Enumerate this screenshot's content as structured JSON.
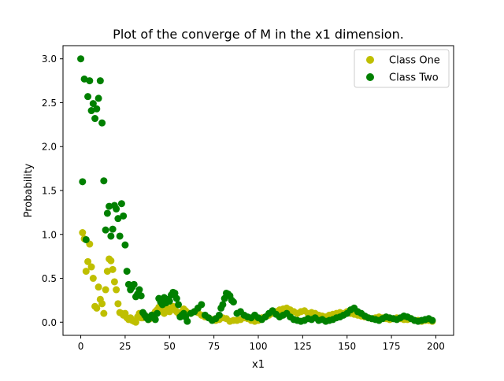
{
  "chart_data": {
    "type": "scatter",
    "title": "Plot of the converge of M in the x1 dimension.",
    "xlabel": "x1",
    "ylabel": "Probability",
    "xlim": [
      -10,
      210
    ],
    "ylim": [
      -0.15,
      3.15
    ],
    "xticks": [
      0,
      25,
      50,
      75,
      100,
      125,
      150,
      175,
      200
    ],
    "xtick_labels": [
      "0",
      "25",
      "50",
      "75",
      "100",
      "125",
      "150",
      "175",
      "200"
    ],
    "yticks": [
      0.0,
      0.5,
      1.0,
      1.5,
      2.0,
      2.5,
      3.0
    ],
    "ytick_labels": [
      "0.0",
      "0.5",
      "1.0",
      "1.5",
      "2.0",
      "2.5",
      "3.0"
    ],
    "grid": false,
    "legend_position": "top-right",
    "series": [
      {
        "name": "Class One",
        "color": "#bfbf00",
        "x": [
          1,
          2,
          3,
          4,
          5,
          6,
          7,
          8,
          9,
          10,
          11,
          12,
          13,
          14,
          15,
          16,
          17,
          18,
          19,
          20,
          21,
          22,
          23,
          24,
          25,
          26,
          27,
          28,
          29,
          30,
          31,
          32,
          33,
          34,
          35,
          36,
          37,
          38,
          39,
          40,
          41,
          42,
          43,
          44,
          45,
          46,
          47,
          48,
          49,
          50,
          51,
          52,
          53,
          54,
          55,
          56,
          57,
          58,
          59,
          60,
          62,
          64,
          66,
          68,
          70,
          72,
          74,
          76,
          78,
          80,
          82,
          84,
          86,
          88,
          90,
          92,
          94,
          96,
          98,
          100,
          102,
          104,
          106,
          108,
          110,
          112,
          114,
          116,
          118,
          120,
          122,
          124,
          126,
          128,
          130,
          132,
          134,
          136,
          138,
          140,
          142,
          144,
          146,
          148,
          150,
          152,
          154,
          156,
          158,
          160,
          162,
          164,
          166,
          168,
          170,
          172,
          174,
          176,
          178,
          180,
          182,
          184,
          186,
          188,
          190,
          192,
          194,
          196,
          198
        ],
        "y": [
          1.02,
          0.95,
          0.58,
          0.69,
          0.89,
          0.63,
          0.5,
          0.18,
          0.16,
          0.4,
          0.26,
          0.21,
          0.1,
          0.37,
          0.58,
          0.72,
          0.7,
          0.6,
          0.46,
          0.37,
          0.21,
          0.11,
          0.1,
          0.08,
          0.1,
          0.05,
          0.03,
          0.05,
          0.02,
          0.01,
          0.0,
          0.06,
          0.1,
          0.05,
          0.05,
          0.08,
          0.06,
          0.03,
          0.04,
          0.07,
          0.09,
          0.12,
          0.14,
          0.17,
          0.13,
          0.12,
          0.1,
          0.14,
          0.16,
          0.12,
          0.15,
          0.18,
          0.14,
          0.12,
          0.1,
          0.08,
          0.12,
          0.15,
          0.13,
          0.11,
          0.1,
          0.12,
          0.11,
          0.08,
          0.06,
          0.05,
          0.03,
          0.02,
          0.03,
          0.05,
          0.04,
          0.01,
          0.02,
          0.02,
          0.03,
          0.05,
          0.04,
          0.02,
          0.01,
          0.02,
          0.05,
          0.06,
          0.08,
          0.1,
          0.12,
          0.14,
          0.15,
          0.16,
          0.14,
          0.12,
          0.1,
          0.12,
          0.13,
          0.1,
          0.11,
          0.1,
          0.08,
          0.07,
          0.06,
          0.08,
          0.09,
          0.1,
          0.11,
          0.1,
          0.12,
          0.1,
          0.09,
          0.08,
          0.07,
          0.06,
          0.05,
          0.04,
          0.05,
          0.06,
          0.05,
          0.04,
          0.03,
          0.04,
          0.05,
          0.04,
          0.03,
          0.03,
          0.04,
          0.02,
          0.02,
          0.01,
          0.02,
          0.02,
          0.01
        ]
      },
      {
        "name": "Class Two",
        "color": "#008000",
        "x": [
          0,
          1,
          2,
          3,
          4,
          5,
          6,
          7,
          8,
          9,
          10,
          11,
          12,
          13,
          14,
          15,
          16,
          17,
          18,
          19,
          20,
          21,
          22,
          23,
          24,
          25,
          26,
          27,
          28,
          29,
          30,
          31,
          32,
          33,
          34,
          35,
          36,
          37,
          38,
          39,
          40,
          41,
          42,
          43,
          44,
          45,
          46,
          47,
          48,
          49,
          50,
          51,
          52,
          53,
          54,
          55,
          56,
          57,
          58,
          59,
          60,
          62,
          64,
          66,
          68,
          70,
          72,
          74,
          76,
          78,
          79,
          80,
          81,
          82,
          83,
          84,
          85,
          86,
          88,
          90,
          92,
          94,
          96,
          98,
          100,
          102,
          104,
          106,
          108,
          110,
          112,
          114,
          116,
          118,
          120,
          122,
          124,
          126,
          128,
          130,
          132,
          134,
          136,
          138,
          140,
          142,
          144,
          146,
          148,
          150,
          152,
          154,
          156,
          158,
          160,
          162,
          164,
          166,
          168,
          170,
          172,
          174,
          176,
          178,
          180,
          182,
          184,
          186,
          188,
          190,
          192,
          194,
          196,
          198
        ],
        "y": [
          3.0,
          1.6,
          2.77,
          0.94,
          2.57,
          2.75,
          2.41,
          2.49,
          2.32,
          2.43,
          2.55,
          2.75,
          2.27,
          1.61,
          1.05,
          1.24,
          1.32,
          0.98,
          1.06,
          1.33,
          1.29,
          1.18,
          0.98,
          1.35,
          1.21,
          0.88,
          0.58,
          0.43,
          0.37,
          0.4,
          0.43,
          0.29,
          0.32,
          0.37,
          0.3,
          0.11,
          0.08,
          0.05,
          0.03,
          0.06,
          0.08,
          0.05,
          0.03,
          0.1,
          0.27,
          0.23,
          0.2,
          0.28,
          0.22,
          0.26,
          0.24,
          0.31,
          0.34,
          0.33,
          0.27,
          0.2,
          0.06,
          0.08,
          0.1,
          0.06,
          0.01,
          0.1,
          0.12,
          0.16,
          0.2,
          0.08,
          0.05,
          0.02,
          0.04,
          0.08,
          0.16,
          0.2,
          0.27,
          0.33,
          0.32,
          0.3,
          0.25,
          0.23,
          0.1,
          0.12,
          0.08,
          0.06,
          0.05,
          0.08,
          0.05,
          0.03,
          0.06,
          0.1,
          0.13,
          0.09,
          0.06,
          0.08,
          0.1,
          0.06,
          0.03,
          0.02,
          0.01,
          0.02,
          0.04,
          0.03,
          0.05,
          0.02,
          0.03,
          0.01,
          0.02,
          0.03,
          0.05,
          0.06,
          0.08,
          0.1,
          0.14,
          0.16,
          0.12,
          0.1,
          0.07,
          0.05,
          0.04,
          0.03,
          0.02,
          0.04,
          0.06,
          0.05,
          0.04,
          0.03,
          0.05,
          0.07,
          0.06,
          0.04,
          0.02,
          0.01,
          0.02,
          0.03,
          0.04,
          0.02
        ]
      }
    ]
  }
}
